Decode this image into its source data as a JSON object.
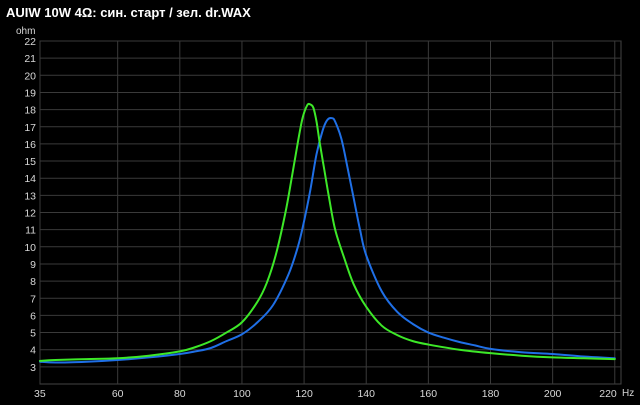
{
  "chart_data": {
    "type": "line",
    "title": "AUIW 10W 4Ω: син. старт / зел. dr.WAX",
    "ylabel": "ohm",
    "xlabel": "Hz",
    "xlim": [
      35,
      222
    ],
    "ylim": [
      2,
      22
    ],
    "x_ticks": [
      "35",
      "60",
      "80",
      "100",
      "120",
      "140",
      "160",
      "180",
      "200",
      "220"
    ],
    "y_ticks": [
      "3",
      "4",
      "5",
      "6",
      "7",
      "8",
      "9",
      "10",
      "11",
      "12",
      "13",
      "14",
      "15",
      "16",
      "17",
      "18",
      "19",
      "20",
      "21",
      "22"
    ],
    "grid": true,
    "series": [
      {
        "color": "#1f6fe6",
        "x": [
          35,
          40,
          50,
          60,
          70,
          80,
          85,
          90,
          95,
          100,
          105,
          110,
          115,
          118,
          120,
          122,
          124,
          126,
          127.5,
          129,
          130,
          132,
          134,
          136,
          138,
          140,
          145,
          150,
          155,
          160,
          165,
          170,
          175,
          180,
          190,
          200,
          210,
          220
        ],
        "y": [
          3.3,
          3.25,
          3.3,
          3.4,
          3.55,
          3.75,
          3.9,
          4.1,
          4.5,
          4.9,
          5.6,
          6.6,
          8.4,
          10.0,
          11.5,
          13.3,
          15.4,
          16.8,
          17.4,
          17.5,
          17.3,
          16.3,
          14.6,
          12.8,
          11.0,
          9.5,
          7.4,
          6.2,
          5.5,
          5.0,
          4.7,
          4.45,
          4.25,
          4.05,
          3.85,
          3.75,
          3.6,
          3.5
        ]
      },
      {
        "color": "#3de828",
        "x": [
          35,
          40,
          50,
          60,
          70,
          80,
          85,
          90,
          95,
          100,
          105,
          108,
          111,
          114,
          116,
          118,
          119.5,
          121,
          122,
          123,
          124,
          125,
          126.5,
          128,
          130,
          133,
          136,
          140,
          145,
          150,
          155,
          160,
          170,
          180,
          190,
          200,
          210,
          220
        ],
        "y": [
          3.35,
          3.4,
          3.45,
          3.5,
          3.65,
          3.9,
          4.15,
          4.5,
          5.0,
          5.6,
          6.8,
          7.9,
          9.6,
          12.0,
          14.0,
          16.1,
          17.5,
          18.25,
          18.3,
          18.1,
          17.3,
          16.1,
          14.5,
          12.9,
          11.0,
          9.3,
          7.8,
          6.5,
          5.4,
          4.85,
          4.5,
          4.3,
          4.0,
          3.8,
          3.65,
          3.55,
          3.5,
          3.45
        ]
      }
    ]
  }
}
